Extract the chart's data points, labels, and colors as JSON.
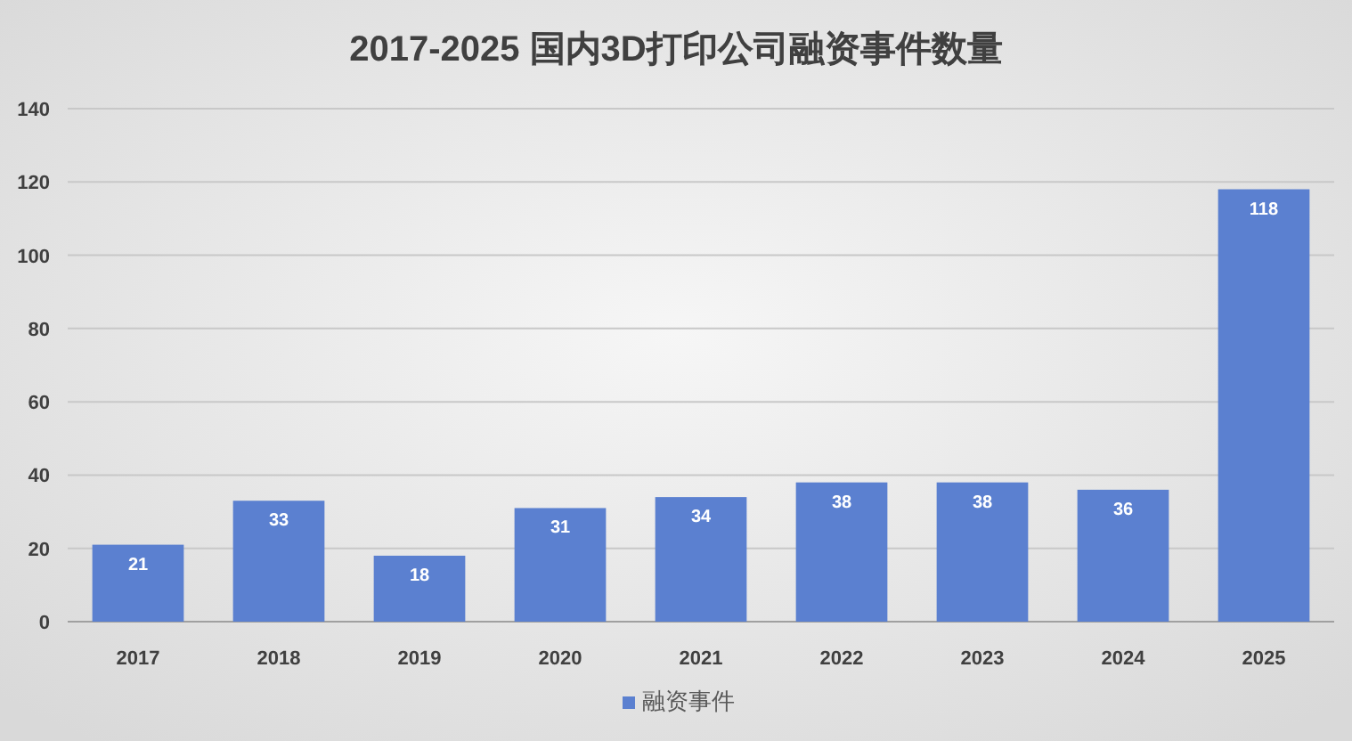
{
  "chart_data": {
    "type": "bar",
    "title": "2017-2025 国内3D打印公司融资事件数量",
    "categories": [
      "2017",
      "2018",
      "2019",
      "2020",
      "2021",
      "2022",
      "2023",
      "2024",
      "2025"
    ],
    "series": [
      {
        "name": "融资事件",
        "color": "#5b80d0",
        "values": [
          21,
          33,
          18,
          31,
          34,
          38,
          38,
          36,
          118
        ]
      }
    ],
    "ylim": [
      0,
      140
    ],
    "yticks": [
      0,
      20,
      40,
      60,
      80,
      100,
      120,
      140
    ],
    "grid": "y",
    "legend": "bottom",
    "data_labels": true
  }
}
